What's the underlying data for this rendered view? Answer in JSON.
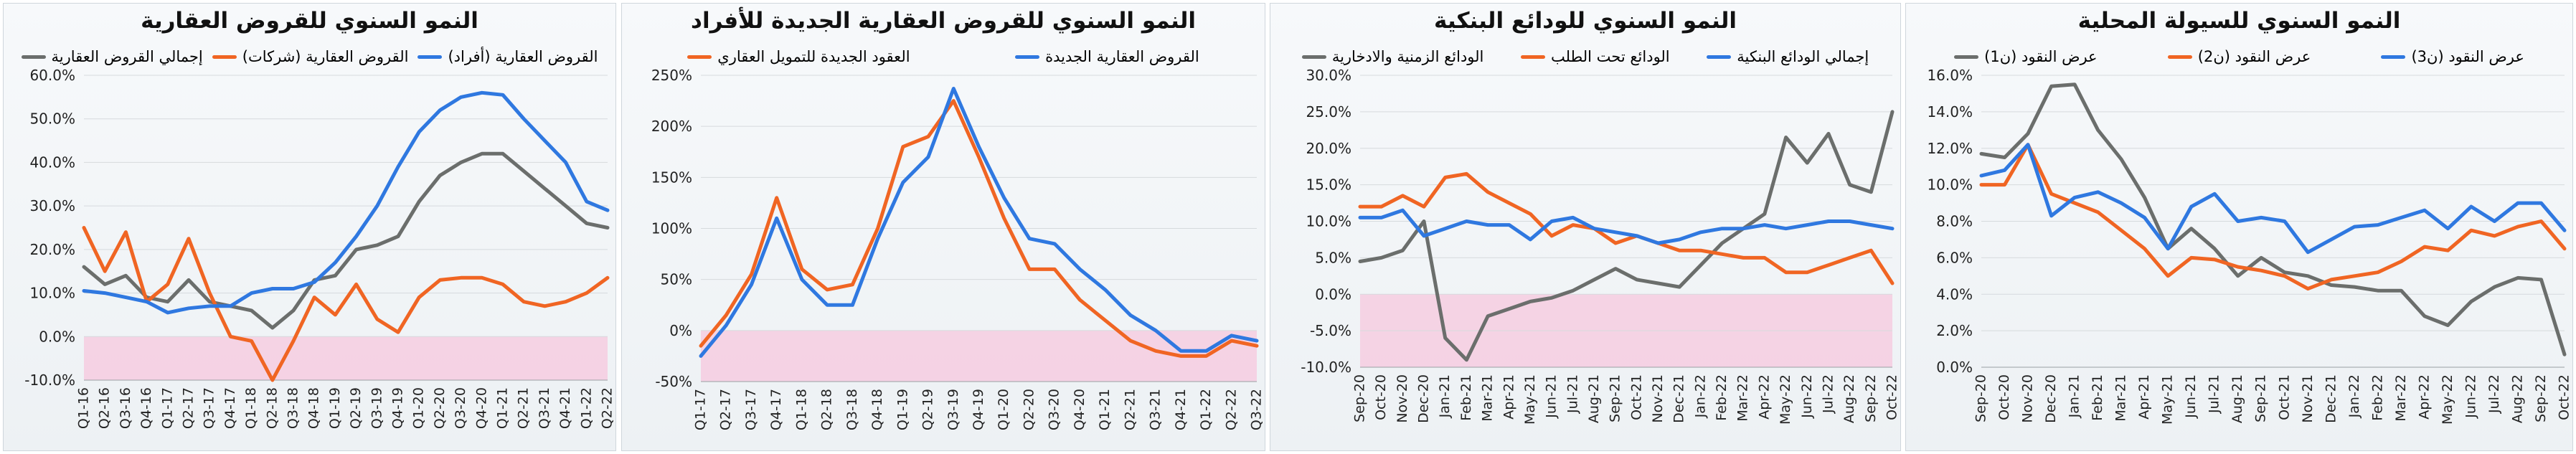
{
  "chart_data": [
    {
      "type": "line",
      "title": "النمو السنوي للقروض العقارية",
      "categories": [
        "Q1-16",
        "Q2-16",
        "Q3-16",
        "Q4-16",
        "Q1-17",
        "Q2-17",
        "Q3-17",
        "Q4-17",
        "Q1-18",
        "Q2-18",
        "Q3-18",
        "Q4-18",
        "Q1-19",
        "Q2-19",
        "Q3-19",
        "Q4-19",
        "Q1-20",
        "Q2-20",
        "Q3-20",
        "Q4-20",
        "Q1-21",
        "Q2-21",
        "Q3-21",
        "Q4-21",
        "Q1-22",
        "Q2-22"
      ],
      "step": 1,
      "ytick_values": [
        -10,
        0,
        10,
        20,
        30,
        40,
        50,
        60
      ],
      "ytick_labels": [
        "-10.0%",
        "0.0%",
        "10.0%",
        "20.0%",
        "30.0%",
        "40.0%",
        "50.0%",
        "60.0%"
      ],
      "ylim": [
        -10,
        60
      ],
      "band": [
        -10,
        0
      ],
      "series": [
        {
          "name": "القروض العقارية (أفراد)",
          "color": "#2f78e0",
          "values": [
            10.5,
            10,
            9,
            8,
            5.5,
            6.5,
            7,
            7,
            10,
            11,
            11,
            12.5,
            17,
            23,
            30,
            39,
            47,
            52,
            55,
            56,
            55.5,
            50,
            45,
            40,
            31,
            29
          ]
        },
        {
          "name": "القروض العقارية (شركات)",
          "color": "#f06523",
          "values": [
            25,
            15,
            24,
            8,
            12,
            22.5,
            10,
            0,
            -1,
            -10,
            -1,
            9,
            5,
            12,
            4,
            1,
            9,
            13,
            13.5,
            13.5,
            12,
            8,
            7,
            8,
            10,
            13.5
          ]
        },
        {
          "name": "إجمالي القروض العقارية",
          "color": "#6b6e6c",
          "values": [
            16,
            12,
            14,
            9,
            8,
            13,
            8,
            7,
            6,
            2,
            6,
            13,
            14,
            20,
            21,
            23,
            31,
            37,
            40,
            42,
            42,
            38,
            34,
            30,
            26,
            25
          ]
        }
      ]
    },
    {
      "type": "line",
      "title": "النمو السنوي للقروض العقارية الجديدة للأفراد",
      "categories": [
        "Q1-17",
        "Q2-17",
        "Q3-17",
        "Q4-17",
        "Q1-18",
        "Q2-18",
        "Q3-18",
        "Q4-18",
        "Q1-19",
        "Q2-19",
        "Q3-19",
        "Q4-19",
        "Q1-20",
        "Q2-20",
        "Q3-20",
        "Q4-20",
        "Q1-21",
        "Q2-21",
        "Q3-21",
        "Q4-21",
        "Q1-22",
        "Q2-22",
        "Q3-22"
      ],
      "step": 1,
      "ytick_values": [
        -50,
        0,
        50,
        100,
        150,
        200,
        250
      ],
      "ytick_labels": [
        "-50%",
        "0%",
        "50%",
        "100%",
        "150%",
        "200%",
        "250%"
      ],
      "ylim": [
        -50,
        250
      ],
      "band": [
        -50,
        0
      ],
      "series": [
        {
          "name": "القروض العقارية الجديدة",
          "color": "#2f78e0",
          "values": [
            -25,
            5,
            45,
            110,
            50,
            25,
            25,
            90,
            145,
            170,
            237,
            180,
            130,
            90,
            85,
            60,
            40,
            15,
            0,
            -20,
            -20,
            -5,
            -10
          ]
        },
        {
          "name": "العقود الجديدة للتمويل العقاري",
          "color": "#f06523",
          "values": [
            -15,
            15,
            55,
            130,
            60,
            40,
            45,
            100,
            180,
            190,
            225,
            170,
            110,
            60,
            60,
            30,
            10,
            -10,
            -20,
            -25,
            -25,
            -10,
            -15
          ]
        }
      ]
    },
    {
      "type": "line",
      "title": "النمو السنوي للودائع البنكية",
      "categories": [
        "Sep-20",
        "Oct-20",
        "Nov-20",
        "Dec-20",
        "Jan-21",
        "Feb-21",
        "Mar-21",
        "Apr-21",
        "May-21",
        "Jun-21",
        "Jul-21",
        "Aug-21",
        "Sep-21",
        "Oct-21",
        "Nov-21",
        "Dec-21",
        "Jan-22",
        "Feb-22",
        "Mar-22",
        "Apr-22",
        "May-22",
        "Jun-22",
        "Jul-22",
        "Aug-22",
        "Sep-22",
        "Oct-22"
      ],
      "step": 1,
      "ytick_values": [
        -10,
        -5,
        0,
        5,
        10,
        15,
        20,
        25,
        30
      ],
      "ytick_labels": [
        "-10.0%",
        "-5.0%",
        "0.0%",
        "5.0%",
        "10.0%",
        "15.0%",
        "20.0%",
        "25.0%",
        "30.0%"
      ],
      "ylim": [
        -10,
        30
      ],
      "band": [
        -10,
        0
      ],
      "series": [
        {
          "name": "إجمالي الودائع البنكية",
          "color": "#2f78e0",
          "values": [
            10.5,
            10.5,
            11.5,
            8,
            9,
            10,
            9.5,
            9.5,
            7.5,
            10,
            10.5,
            9,
            8.5,
            8,
            7,
            7.5,
            8.5,
            9,
            9,
            9.5,
            9,
            9.5,
            10,
            10,
            9.5,
            9
          ]
        },
        {
          "name": "الودائع تحت الطلب",
          "color": "#f06523",
          "values": [
            12,
            12,
            13.5,
            12,
            16,
            16.5,
            14,
            12.5,
            11,
            8,
            9.5,
            9,
            7,
            8,
            7,
            6,
            6,
            5.5,
            5,
            5,
            3,
            3,
            4,
            5,
            6,
            1.5
          ]
        },
        {
          "name": "الودائع الزمنية والادخارية",
          "color": "#6b6e6c",
          "values": [
            4.5,
            5,
            6,
            10,
            -6,
            -9,
            -3,
            -2,
            -1,
            -0.5,
            0.5,
            2,
            3.5,
            2,
            1.5,
            1,
            4,
            7,
            9,
            11,
            21.5,
            18,
            22,
            15,
            14,
            25
          ]
        }
      ]
    },
    {
      "type": "line",
      "title": "النمو السنوي للسيولة المحلية",
      "categories": [
        "Sep-20",
        "Oct-20",
        "Nov-20",
        "Dec-20",
        "Jan-21",
        "Feb-21",
        "Mar-21",
        "Apr-21",
        "May-21",
        "Jun-21",
        "Jul-21",
        "Aug-21",
        "Sep-21",
        "Oct-21",
        "Nov-21",
        "Dec-21",
        "Jan-22",
        "Feb-22",
        "Mar-22",
        "Apr-22",
        "May-22",
        "Jun-22",
        "Jul-22",
        "Aug-22",
        "Sep-22",
        "Oct-22"
      ],
      "step": 1,
      "ytick_values": [
        0,
        2,
        4,
        6,
        8,
        10,
        12,
        14,
        16
      ],
      "ytick_labels": [
        "0.0%",
        "2.0%",
        "4.0%",
        "6.0%",
        "8.0%",
        "10.0%",
        "12.0%",
        "14.0%",
        "16.0%"
      ],
      "ylim": [
        0,
        16
      ],
      "band": null,
      "series": [
        {
          "name": "عرض النقود (ن3)",
          "color": "#2f78e0",
          "values": [
            10.5,
            10.8,
            12.2,
            8.3,
            9.3,
            9.6,
            9,
            8.2,
            6.5,
            8.8,
            9.5,
            8,
            8.2,
            8,
            6.3,
            7,
            7.7,
            7.8,
            8.2,
            8.6,
            7.6,
            8.8,
            8,
            9,
            9,
            7.5
          ]
        },
        {
          "name": "عرض النقود (ن2)",
          "color": "#f06523",
          "values": [
            10,
            10,
            12.2,
            9.5,
            9,
            8.5,
            7.5,
            6.5,
            5,
            6,
            5.9,
            5.5,
            5.3,
            5,
            4.3,
            4.8,
            5,
            5.2,
            5.8,
            6.6,
            6.4,
            7.5,
            7.2,
            7.7,
            8,
            6.5
          ]
        },
        {
          "name": "عرض النقود (ن1)",
          "color": "#6b6e6c",
          "values": [
            11.7,
            11.5,
            12.8,
            15.4,
            15.5,
            13,
            11.4,
            9.3,
            6.5,
            7.6,
            6.5,
            5,
            6,
            5.2,
            5,
            4.5,
            4.4,
            4.2,
            4.2,
            2.8,
            2.3,
            3.6,
            4.4,
            4.9,
            4.8,
            0.7
          ]
        }
      ]
    }
  ]
}
